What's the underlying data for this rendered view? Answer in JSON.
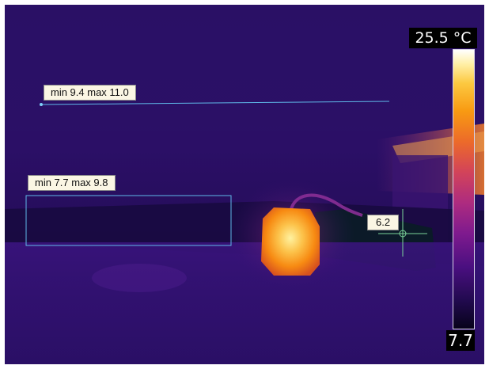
{
  "measurements": {
    "line_label": "min 9.4 max 11.0",
    "area_label": "min 7.7 max 9.8",
    "spot_value": "6.2"
  },
  "scale": {
    "max_label": "25.5 °C",
    "min_label": "7.7"
  },
  "colors": {
    "measurement_cyan": "#5fb8e8",
    "spot_green": "#7bd49a",
    "hot_orange": "#f78a12",
    "background_purple": "#2a0f63"
  }
}
